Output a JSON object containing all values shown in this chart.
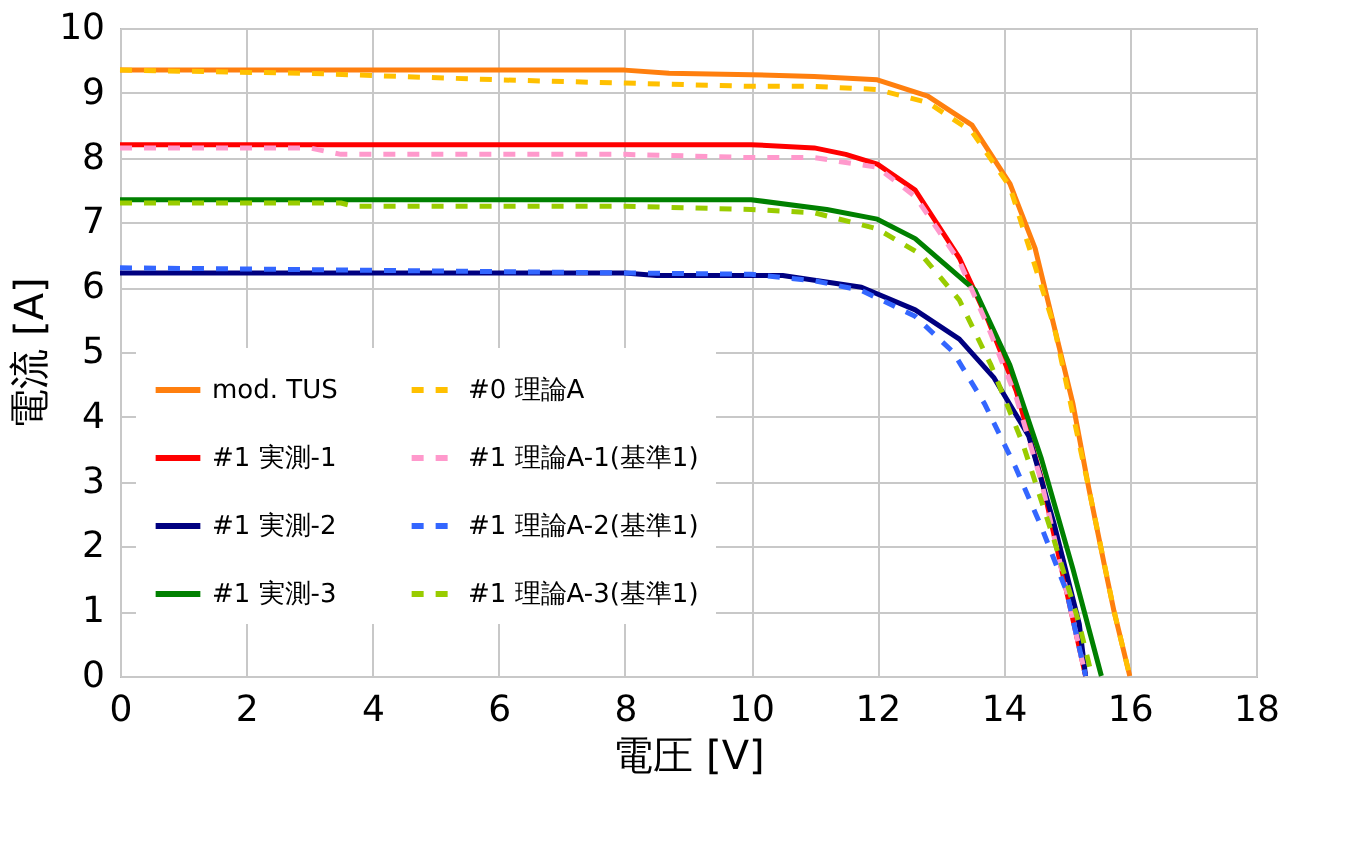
{
  "chart_data": {
    "type": "line",
    "xlabel": "電圧 [V]",
    "ylabel": "電流 [A]",
    "xlim": [
      0,
      18
    ],
    "xticks": [
      0,
      2,
      4,
      6,
      8,
      10,
      12,
      14,
      16,
      18
    ],
    "ylim": [
      0,
      10
    ],
    "yticks": [
      0,
      1,
      2,
      3,
      4,
      5,
      6,
      7,
      8,
      9,
      10
    ],
    "grid": true,
    "legend": "bottom left",
    "marker": "none",
    "series": [
      {
        "name": "mod. TUS",
        "color": "#ff7f0e",
        "line_style": "solid",
        "x": [
          0,
          8,
          8.7,
          10,
          11,
          12,
          12.8,
          13.5,
          14.1,
          14.5,
          14.8,
          15.1,
          15.35,
          15.6,
          15.75,
          16.0
        ],
        "values": [
          9.35,
          9.35,
          9.3,
          9.28,
          9.25,
          9.2,
          8.95,
          8.5,
          7.6,
          6.6,
          5.4,
          4.2,
          2.9,
          1.7,
          1.0,
          0
        ]
      },
      {
        "name": "#1 実測-1",
        "color": "#ff0000",
        "line_style": "solid",
        "x": [
          0,
          10,
          11,
          11.5,
          12,
          12.6,
          13.3,
          13.75,
          14.2,
          14.6,
          15.0,
          15.3
        ],
        "values": [
          8.2,
          8.2,
          8.15,
          8.05,
          7.9,
          7.5,
          6.45,
          5.5,
          4.4,
          3.05,
          1.3,
          0
        ]
      },
      {
        "name": "#1 実測-2",
        "color": "#000080",
        "line_style": "solid",
        "x": [
          0,
          8,
          8.5,
          10.5,
          11.75,
          12.6,
          13.3,
          13.85,
          14.4,
          14.8,
          15.2,
          15.3
        ],
        "values": [
          6.22,
          6.22,
          6.18,
          6.18,
          6.0,
          5.65,
          5.2,
          4.6,
          3.7,
          2.35,
          0.8,
          0
        ]
      },
      {
        "name": "#1 実測-3",
        "color": "#008000",
        "line_style": "solid",
        "x": [
          0,
          10,
          11.2,
          12,
          12.6,
          13.55,
          14.1,
          14.6,
          15.1,
          15.55
        ],
        "values": [
          7.35,
          7.35,
          7.2,
          7.05,
          6.75,
          5.95,
          4.8,
          3.35,
          1.65,
          0
        ]
      },
      {
        "name": "#0 理論A",
        "color": "#ffc000",
        "line_style": "dashed",
        "x": [
          0,
          3,
          6,
          8,
          10,
          11,
          12,
          12.8,
          13.5,
          14.1,
          14.8,
          15.35,
          15.75,
          16.0
        ],
        "values": [
          9.35,
          9.3,
          9.2,
          9.15,
          9.1,
          9.1,
          9.05,
          8.85,
          8.4,
          7.55,
          5.4,
          2.9,
          1.0,
          0
        ]
      },
      {
        "name": "#1 理論A-1(基準1)",
        "color": "#ff99cc",
        "line_style": "dashed",
        "x": [
          0,
          3,
          3.5,
          8,
          10,
          11,
          12,
          12.6,
          13.3,
          13.75,
          14.2,
          14.6,
          15.0,
          15.3
        ],
        "values": [
          8.15,
          8.15,
          8.05,
          8.05,
          8.0,
          8.0,
          7.85,
          7.4,
          6.4,
          5.4,
          4.3,
          3.0,
          1.3,
          0
        ]
      },
      {
        "name": "#1 理論A-2(基準1)",
        "color": "#3366ff",
        "line_style": "dashed",
        "x": [
          0,
          10,
          11,
          11.75,
          12.6,
          13.2,
          13.7,
          14.2,
          14.6,
          15.0,
          15.3
        ],
        "values": [
          6.3,
          6.2,
          6.1,
          5.95,
          5.55,
          5.0,
          4.2,
          3.2,
          2.3,
          1.3,
          0
        ]
      },
      {
        "name": "#1 理論A-3(基準1)",
        "color": "#99cc00",
        "line_style": "dashed",
        "x": [
          0,
          3.5,
          3.7,
          8,
          10,
          11,
          12,
          12.7,
          13.3,
          13.8,
          14.3,
          14.8,
          15.2,
          15.4
        ],
        "values": [
          7.3,
          7.3,
          7.25,
          7.25,
          7.2,
          7.15,
          6.9,
          6.5,
          5.8,
          4.8,
          3.6,
          2.1,
          0.8,
          0
        ]
      }
    ]
  }
}
